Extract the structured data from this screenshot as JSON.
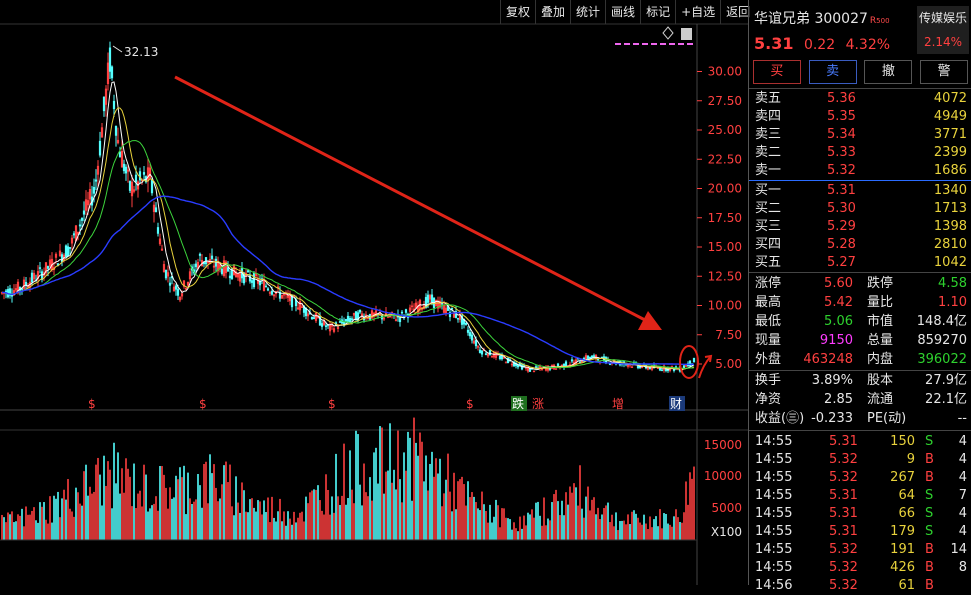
{
  "toolbar": {
    "items": [
      "复权",
      "叠加",
      "统计",
      "画线",
      "标记",
      "+自选",
      "返回"
    ]
  },
  "stock": {
    "name": "华谊兄弟",
    "code": "300027",
    "tag": "R",
    "tag_sub": "500",
    "price": "5.31",
    "change": "0.22",
    "pct": "4.32%",
    "sector_name": "传媒娱乐",
    "sector_pct": "2.14%"
  },
  "actions": [
    "买",
    "卖",
    "撤",
    "警"
  ],
  "asks": [
    {
      "label": "卖五",
      "price": "5.36",
      "vol": "4072"
    },
    {
      "label": "卖四",
      "price": "5.35",
      "vol": "4949"
    },
    {
      "label": "卖三",
      "price": "5.34",
      "vol": "3771"
    },
    {
      "label": "卖二",
      "price": "5.33",
      "vol": "2399"
    },
    {
      "label": "卖一",
      "price": "5.32",
      "vol": "1686"
    }
  ],
  "bids": [
    {
      "label": "买一",
      "price": "5.31",
      "vol": "1340"
    },
    {
      "label": "买二",
      "price": "5.30",
      "vol": "1713"
    },
    {
      "label": "买三",
      "price": "5.29",
      "vol": "1398"
    },
    {
      "label": "买四",
      "price": "5.28",
      "vol": "2810"
    },
    {
      "label": "买五",
      "price": "5.27",
      "vol": "1042"
    }
  ],
  "stats": [
    {
      "l1": "涨停",
      "v1": "5.60",
      "c1": "red",
      "l2": "跌停",
      "v2": "4.58",
      "c2": "green"
    },
    {
      "l1": "最高",
      "v1": "5.42",
      "c1": "red",
      "l2": "量比",
      "v2": "1.10",
      "c2": "red"
    },
    {
      "l1": "最低",
      "v1": "5.06",
      "c1": "green",
      "l2": "市值",
      "v2": "148.4亿",
      "c2": "wht"
    },
    {
      "l1": "现量",
      "v1": "9150",
      "c1": "mag",
      "l2": "总量",
      "v2": "859270",
      "c2": "wht"
    },
    {
      "l1": "外盘",
      "v1": "463248",
      "c1": "red",
      "l2": "内盘",
      "v2": "396022",
      "c2": "green"
    }
  ],
  "stats2": [
    {
      "l1": "换手",
      "v1": "3.89%",
      "l2": "股本",
      "v2": "27.9亿"
    },
    {
      "l1": "净资",
      "v1": "2.85",
      "l2": "流通",
      "v2": "22.1亿"
    },
    {
      "l1": "收益(㊂)",
      "v1": "-0.233",
      "l2": "PE(动)",
      "v2": "--"
    }
  ],
  "ticks": [
    {
      "t": "14:55",
      "p": "5.31",
      "v": "150",
      "s": "S",
      "n": "4"
    },
    {
      "t": "14:55",
      "p": "5.32",
      "v": "9",
      "s": "B",
      "n": "4"
    },
    {
      "t": "14:55",
      "p": "5.32",
      "v": "267",
      "s": "B",
      "n": "4"
    },
    {
      "t": "14:55",
      "p": "5.31",
      "v": "64",
      "s": "S",
      "n": "7"
    },
    {
      "t": "14:55",
      "p": "5.31",
      "v": "66",
      "s": "S",
      "n": "4"
    },
    {
      "t": "14:55",
      "p": "5.31",
      "v": "179",
      "s": "S",
      "n": "4"
    },
    {
      "t": "14:55",
      "p": "5.32",
      "v": "191",
      "s": "B",
      "n": "14"
    },
    {
      "t": "14:55",
      "p": "5.32",
      "v": "426",
      "s": "B",
      "n": "8"
    },
    {
      "t": "14:56",
      "p": "5.32",
      "v": "61",
      "s": "B",
      "n": ""
    }
  ],
  "price_axis": [
    "30.00",
    "27.50",
    "25.00",
    "22.50",
    "20.00",
    "17.50",
    "15.00",
    "12.50",
    "10.00",
    "7.50",
    "5.00"
  ],
  "vol_axis": [
    "15000",
    "10000",
    "5000",
    "X100"
  ],
  "peak_label": "32.13",
  "markers": [
    "$",
    "$",
    "$",
    "$",
    "跌",
    "涨",
    "增",
    "财"
  ],
  "colors": {
    "up": "#ff4040",
    "down": "#54ffff",
    "ma_white": "#ffffff",
    "ma_yellow": "#e8d23c",
    "ma_green": "#3cd43c",
    "ma_blue": "#2a3cff",
    "arrow": "#e02418"
  }
}
